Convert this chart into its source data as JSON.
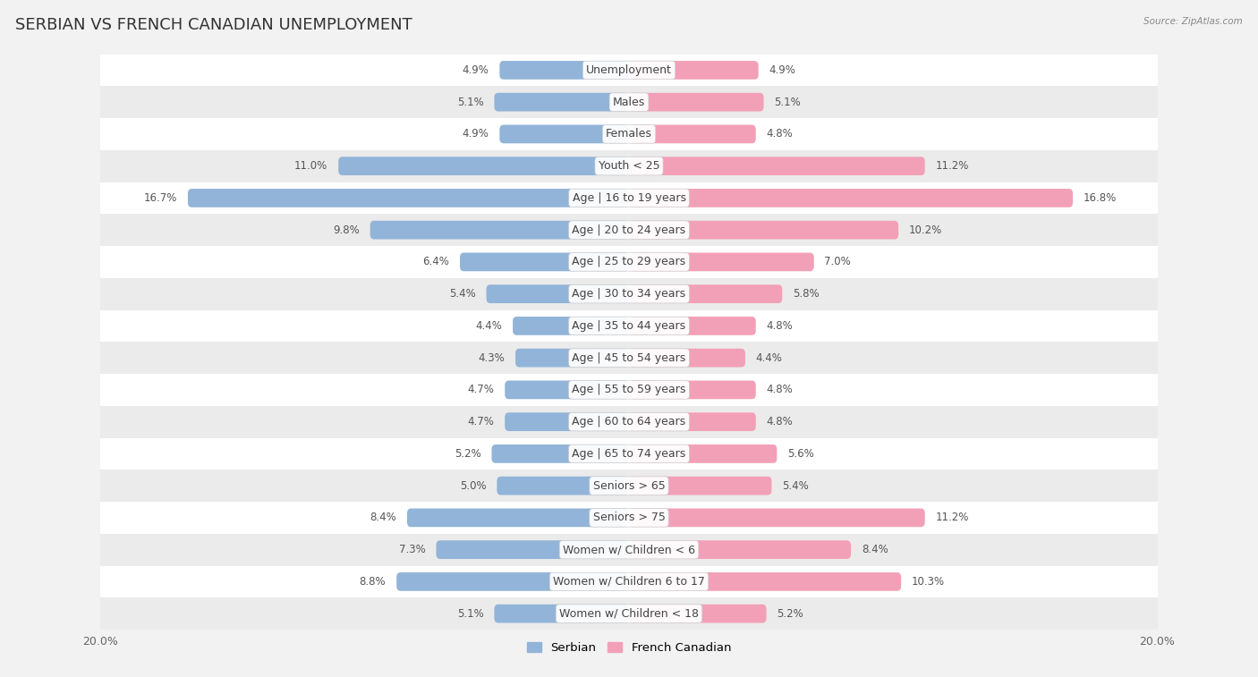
{
  "title": "SERBIAN VS FRENCH CANADIAN UNEMPLOYMENT",
  "source": "Source: ZipAtlas.com",
  "categories": [
    "Unemployment",
    "Males",
    "Females",
    "Youth < 25",
    "Age | 16 to 19 years",
    "Age | 20 to 24 years",
    "Age | 25 to 29 years",
    "Age | 30 to 34 years",
    "Age | 35 to 44 years",
    "Age | 45 to 54 years",
    "Age | 55 to 59 years",
    "Age | 60 to 64 years",
    "Age | 65 to 74 years",
    "Seniors > 65",
    "Seniors > 75",
    "Women w/ Children < 6",
    "Women w/ Children 6 to 17",
    "Women w/ Children < 18"
  ],
  "serbian": [
    4.9,
    5.1,
    4.9,
    11.0,
    16.7,
    9.8,
    6.4,
    5.4,
    4.4,
    4.3,
    4.7,
    4.7,
    5.2,
    5.0,
    8.4,
    7.3,
    8.8,
    5.1
  ],
  "french_canadian": [
    4.9,
    5.1,
    4.8,
    11.2,
    16.8,
    10.2,
    7.0,
    5.8,
    4.8,
    4.4,
    4.8,
    4.8,
    5.6,
    5.4,
    11.2,
    8.4,
    10.3,
    5.2
  ],
  "serbian_color": "#92b4d8",
  "french_canadian_color": "#f2a0b8",
  "bar_height": 0.58,
  "xlim": 20.0,
  "background_color": "#f2f2f2",
  "row_odd_color": "#ffffff",
  "row_even_color": "#ebebeb",
  "title_fontsize": 13,
  "label_fontsize": 9,
  "value_fontsize": 8.5,
  "axis_label_fontsize": 9
}
